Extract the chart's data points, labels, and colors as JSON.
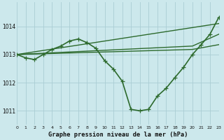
{
  "title": "Graphe pression niveau de la mer (hPa)",
  "bg_color": "#cce8ec",
  "grid_color": "#aacdd4",
  "line_color": "#2d6a2d",
  "xlim": [
    0,
    23
  ],
  "ylim": [
    1010.5,
    1014.85
  ],
  "yticks": [
    1011,
    1012,
    1013,
    1014
  ],
  "xticks": [
    0,
    1,
    2,
    3,
    4,
    5,
    6,
    7,
    8,
    9,
    10,
    11,
    12,
    13,
    14,
    15,
    16,
    17,
    18,
    19,
    20,
    21,
    22,
    23
  ],
  "lines": [
    {
      "x": [
        0,
        1,
        2,
        3,
        4,
        5,
        6,
        7,
        8,
        9,
        10,
        11,
        12,
        13,
        14,
        15,
        16,
        17,
        18,
        19,
        20,
        21,
        22,
        23
      ],
      "y": [
        1013.0,
        1012.88,
        1012.82,
        1013.0,
        1013.18,
        1013.3,
        1013.48,
        1013.55,
        1013.42,
        1013.22,
        1012.78,
        1012.48,
        1012.05,
        1011.05,
        1011.0,
        1011.05,
        1011.52,
        1011.8,
        1012.18,
        1012.55,
        1013.0,
        1013.35,
        1013.72,
        1014.32
      ],
      "marker": true,
      "linewidth": 1.2
    },
    {
      "x": [
        0,
        23
      ],
      "y": [
        1013.0,
        1014.1
      ],
      "marker": false,
      "linewidth": 1.0
    },
    {
      "x": [
        0,
        20,
        23
      ],
      "y": [
        1013.0,
        1013.3,
        1013.72
      ],
      "marker": false,
      "linewidth": 1.0
    },
    {
      "x": [
        0,
        20,
        23
      ],
      "y": [
        1013.0,
        1013.18,
        1013.35
      ],
      "marker": false,
      "linewidth": 1.0
    }
  ]
}
